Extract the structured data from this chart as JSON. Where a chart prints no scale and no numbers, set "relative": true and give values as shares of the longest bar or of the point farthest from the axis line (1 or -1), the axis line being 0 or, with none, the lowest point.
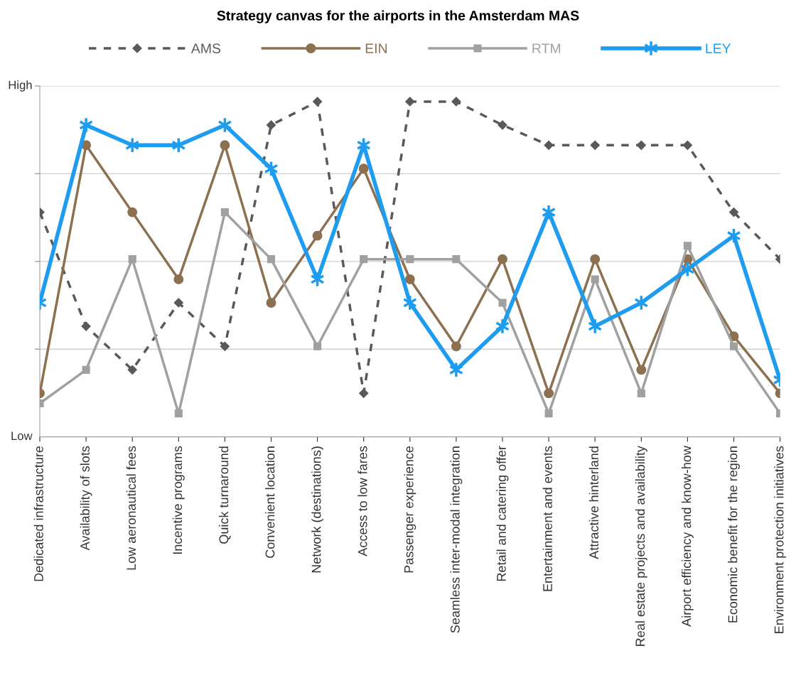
{
  "chart_data": {
    "type": "line",
    "title": "Strategy canvas for the airports in the Amsterdam MAS",
    "categories": [
      "Dedicated infrastructure",
      "Availability of slots",
      "Low aeronautical fees",
      "Incentive programs",
      "Quick turnaround",
      "Convenient location",
      "Network (destinations)",
      "Access to low fares",
      "Passenger experience",
      "Seamless inter-modal integration",
      "Retail and catering offer",
      "Entertainment and events",
      "Attractive hinterland",
      "Real estate projects and availability",
      "Airport efficiency and know-how",
      "Economic benefit for the region",
      "Environment protection initiatives"
    ],
    "series": [
      {
        "name": "AMS",
        "color": "#595959",
        "marker": "diamond",
        "line_style": "dashed",
        "values": [
          0.67,
          0.33,
          0.2,
          0.4,
          0.27,
          0.93,
          1,
          0.13,
          1,
          1,
          0.93,
          0.87,
          0.87,
          0.87,
          0.87,
          0.67,
          0.53
        ]
      },
      {
        "name": "EIN",
        "color": "#8c7050",
        "marker": "circle",
        "line_style": "solid",
        "values": [
          0.13,
          0.87,
          0.67,
          0.47,
          0.87,
          0.4,
          0.6,
          0.8,
          0.47,
          0.27,
          0.53,
          0.13,
          0.53,
          0.2,
          0.53,
          0.3,
          0.13
        ]
      },
      {
        "name": "RTM",
        "color": "#a0a0a0",
        "marker": "square",
        "line_style": "solid",
        "values": [
          0.1,
          0.2,
          0.53,
          0.07,
          0.67,
          0.53,
          0.27,
          0.53,
          0.53,
          0.53,
          0.4,
          0.07,
          0.47,
          0.13,
          0.57,
          0.27,
          0.07
        ]
      },
      {
        "name": "LEY",
        "color": "#1e9cf0",
        "marker": "cross",
        "line_style": "solid",
        "values": [
          0.4,
          0.93,
          0.87,
          0.87,
          0.93,
          0.8,
          0.47,
          0.87,
          0.4,
          0.2,
          0.33,
          0.67,
          0.33,
          0.4,
          0.5,
          0.6,
          0.17
        ]
      }
    ],
    "relative": true,
    "annotations": [
      "High",
      "Low"
    ],
    "grid": "y",
    "legend": "top"
  }
}
